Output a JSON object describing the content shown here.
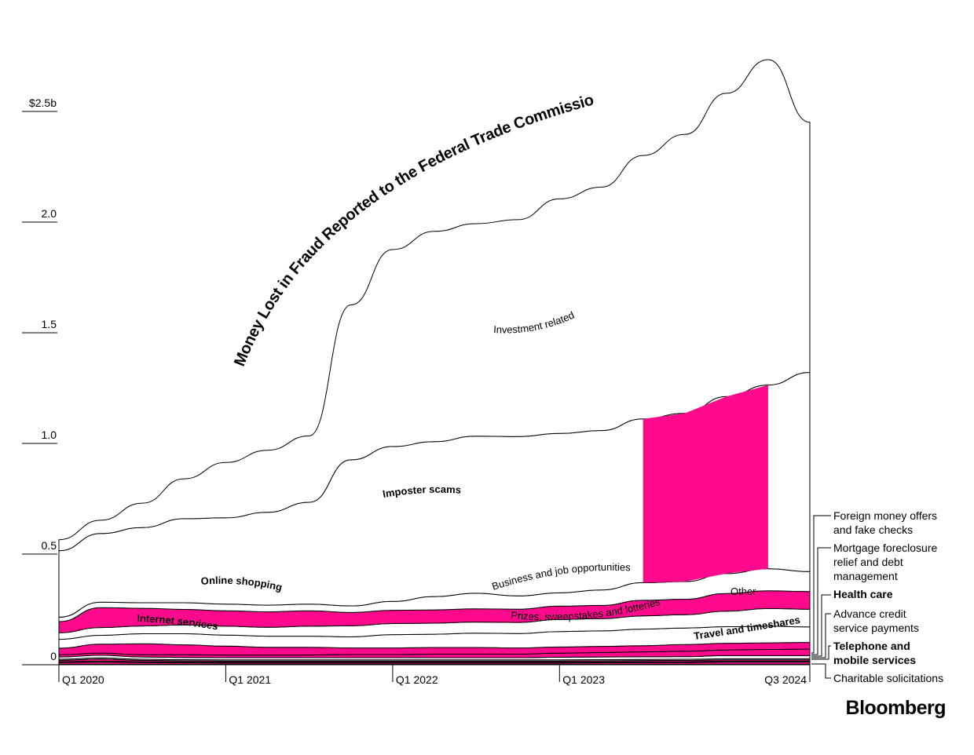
{
  "chart_data": {
    "type": "area",
    "subtype": "stacked-streamgraph",
    "title": "Money Lost in Fraud Reported to the Federal Trade Commission",
    "ylabel": "",
    "xlabel": "",
    "ylim": [
      0,
      2.8
    ],
    "y_unit": "billions USD",
    "y_ticks": [
      {
        "value": 0,
        "label": "0"
      },
      {
        "value": 0.5,
        "label": "0.5"
      },
      {
        "value": 1.0,
        "label": "1.0"
      },
      {
        "value": 1.5,
        "label": "1.5"
      },
      {
        "value": 2.0,
        "label": "2.0"
      },
      {
        "value": 2.5,
        "label": "$2.5b"
      }
    ],
    "x_ticks": [
      {
        "index": 0,
        "label": "Q1 2020"
      },
      {
        "index": 4,
        "label": "Q1 2021"
      },
      {
        "index": 8,
        "label": "Q1 2022"
      },
      {
        "index": 12,
        "label": "Q1 2023"
      },
      {
        "index": 18,
        "label": "Q3 2024"
      }
    ],
    "x": [
      "Q1 2020",
      "Q2 2020",
      "Q3 2020",
      "Q4 2020",
      "Q1 2021",
      "Q2 2021",
      "Q3 2021",
      "Q4 2021",
      "Q1 2022",
      "Q2 2022",
      "Q3 2022",
      "Q4 2022",
      "Q1 2023",
      "Q2 2023",
      "Q3 2023",
      "Q4 2023",
      "Q1 2024",
      "Q2 2024",
      "Q3 2024"
    ],
    "series": [
      {
        "name": "Charitable solicitations",
        "values": [
          0.002,
          0.002,
          0.002,
          0.002,
          0.002,
          0.002,
          0.002,
          0.002,
          0.002,
          0.002,
          0.002,
          0.002,
          0.002,
          0.002,
          0.002,
          0.002,
          0.002,
          0.002,
          0.002
        ]
      },
      {
        "name": "Telephone and mobile services",
        "values": [
          0.008,
          0.01,
          0.008,
          0.007,
          0.006,
          0.006,
          0.006,
          0.006,
          0.006,
          0.006,
          0.006,
          0.006,
          0.006,
          0.007,
          0.008,
          0.008,
          0.01,
          0.01,
          0.01
        ]
      },
      {
        "name": "Advance credit service payments",
        "values": [
          0.004,
          0.004,
          0.004,
          0.004,
          0.004,
          0.004,
          0.004,
          0.004,
          0.004,
          0.004,
          0.004,
          0.004,
          0.004,
          0.004,
          0.004,
          0.004,
          0.004,
          0.004,
          0.004
        ]
      },
      {
        "name": "Health care",
        "values": [
          0.006,
          0.01,
          0.006,
          0.005,
          0.005,
          0.005,
          0.005,
          0.005,
          0.005,
          0.005,
          0.005,
          0.005,
          0.005,
          0.005,
          0.005,
          0.006,
          0.006,
          0.006,
          0.006
        ]
      },
      {
        "name": "Mortgage foreclosure relief and debt management",
        "values": [
          0.005,
          0.005,
          0.005,
          0.005,
          0.005,
          0.005,
          0.005,
          0.005,
          0.005,
          0.005,
          0.005,
          0.005,
          0.005,
          0.005,
          0.005,
          0.005,
          0.005,
          0.005,
          0.005
        ]
      },
      {
        "name": "Foreign money offers and fake checks",
        "values": [
          0.01,
          0.012,
          0.01,
          0.01,
          0.01,
          0.01,
          0.01,
          0.01,
          0.01,
          0.01,
          0.01,
          0.01,
          0.012,
          0.012,
          0.012,
          0.012,
          0.014,
          0.014,
          0.014
        ]
      },
      {
        "name": "Travel and timeshares",
        "values": [
          0.01,
          0.01,
          0.01,
          0.012,
          0.012,
          0.012,
          0.012,
          0.014,
          0.014,
          0.016,
          0.016,
          0.016,
          0.018,
          0.02,
          0.022,
          0.024,
          0.026,
          0.028,
          0.03
        ]
      },
      {
        "name": "Internet services",
        "values": [
          0.03,
          0.04,
          0.05,
          0.045,
          0.04,
          0.035,
          0.035,
          0.03,
          0.03,
          0.03,
          0.03,
          0.028,
          0.028,
          0.028,
          0.028,
          0.03,
          0.03,
          0.03,
          0.03
        ]
      },
      {
        "name": "Prizes, sweepstakes and lotteries",
        "values": [
          0.04,
          0.04,
          0.045,
          0.05,
          0.05,
          0.05,
          0.05,
          0.05,
          0.06,
          0.06,
          0.065,
          0.065,
          0.07,
          0.07,
          0.075,
          0.075,
          0.075,
          0.075,
          0.07
        ]
      },
      {
        "name": "Other",
        "values": [
          0.03,
          0.035,
          0.035,
          0.04,
          0.04,
          0.04,
          0.045,
          0.05,
          0.05,
          0.05,
          0.05,
          0.05,
          0.055,
          0.055,
          0.06,
          0.06,
          0.07,
          0.08,
          0.08
        ]
      },
      {
        "name": "Online shopping",
        "values": [
          0.05,
          0.09,
          0.08,
          0.07,
          0.07,
          0.07,
          0.07,
          0.06,
          0.06,
          0.06,
          0.06,
          0.06,
          0.06,
          0.06,
          0.07,
          0.07,
          0.08,
          0.08,
          0.08
        ]
      },
      {
        "name": "Business and job opportunities",
        "values": [
          0.02,
          0.025,
          0.025,
          0.03,
          0.03,
          0.03,
          0.03,
          0.03,
          0.04,
          0.06,
          0.07,
          0.06,
          0.06,
          0.07,
          0.08,
          0.08,
          0.09,
          0.1,
          0.09
        ]
      },
      {
        "name": "Imposter scams",
        "values": [
          0.3,
          0.31,
          0.34,
          0.38,
          0.39,
          0.42,
          0.46,
          0.66,
          0.7,
          0.7,
          0.71,
          0.72,
          0.72,
          0.72,
          0.74,
          0.76,
          0.8,
          0.83,
          0.9
        ]
      },
      {
        "name": "Investment related",
        "values": [
          0.05,
          0.06,
          0.11,
          0.18,
          0.25,
          0.28,
          0.3,
          0.7,
          0.89,
          0.95,
          0.96,
          0.98,
          1.06,
          1.1,
          1.19,
          1.26,
          1.37,
          1.47,
          1.13
        ]
      }
    ],
    "band_labels": [
      "Investment related",
      "Imposter scams",
      "Online shopping",
      "Business and job opportunities",
      "Other",
      "Internet services",
      "Prizes, sweepstakes and lotteries",
      "Travel and timeshares"
    ],
    "legend": [
      {
        "name": "Foreign money offers",
        "line2": "and fake checks",
        "line3": "",
        "bold": false
      },
      {
        "name": "Mortgage foreclosure",
        "line2": "relief and debt",
        "line3": "management",
        "bold": false
      },
      {
        "name": "Health care",
        "line2": "",
        "line3": "",
        "bold": true
      },
      {
        "name": "Advance credit",
        "line2": "service payments",
        "line3": "",
        "bold": false
      },
      {
        "name": "Telephone and",
        "line2": "mobile services",
        "line3": "",
        "bold": true
      },
      {
        "name": "Charitable solicitations",
        "line2": "",
        "line3": "",
        "bold": false
      }
    ],
    "legend_placement": "right",
    "highlight_color": "#ff0a8c",
    "grid": false
  },
  "brand": {
    "logo_text": "Bloomberg"
  }
}
